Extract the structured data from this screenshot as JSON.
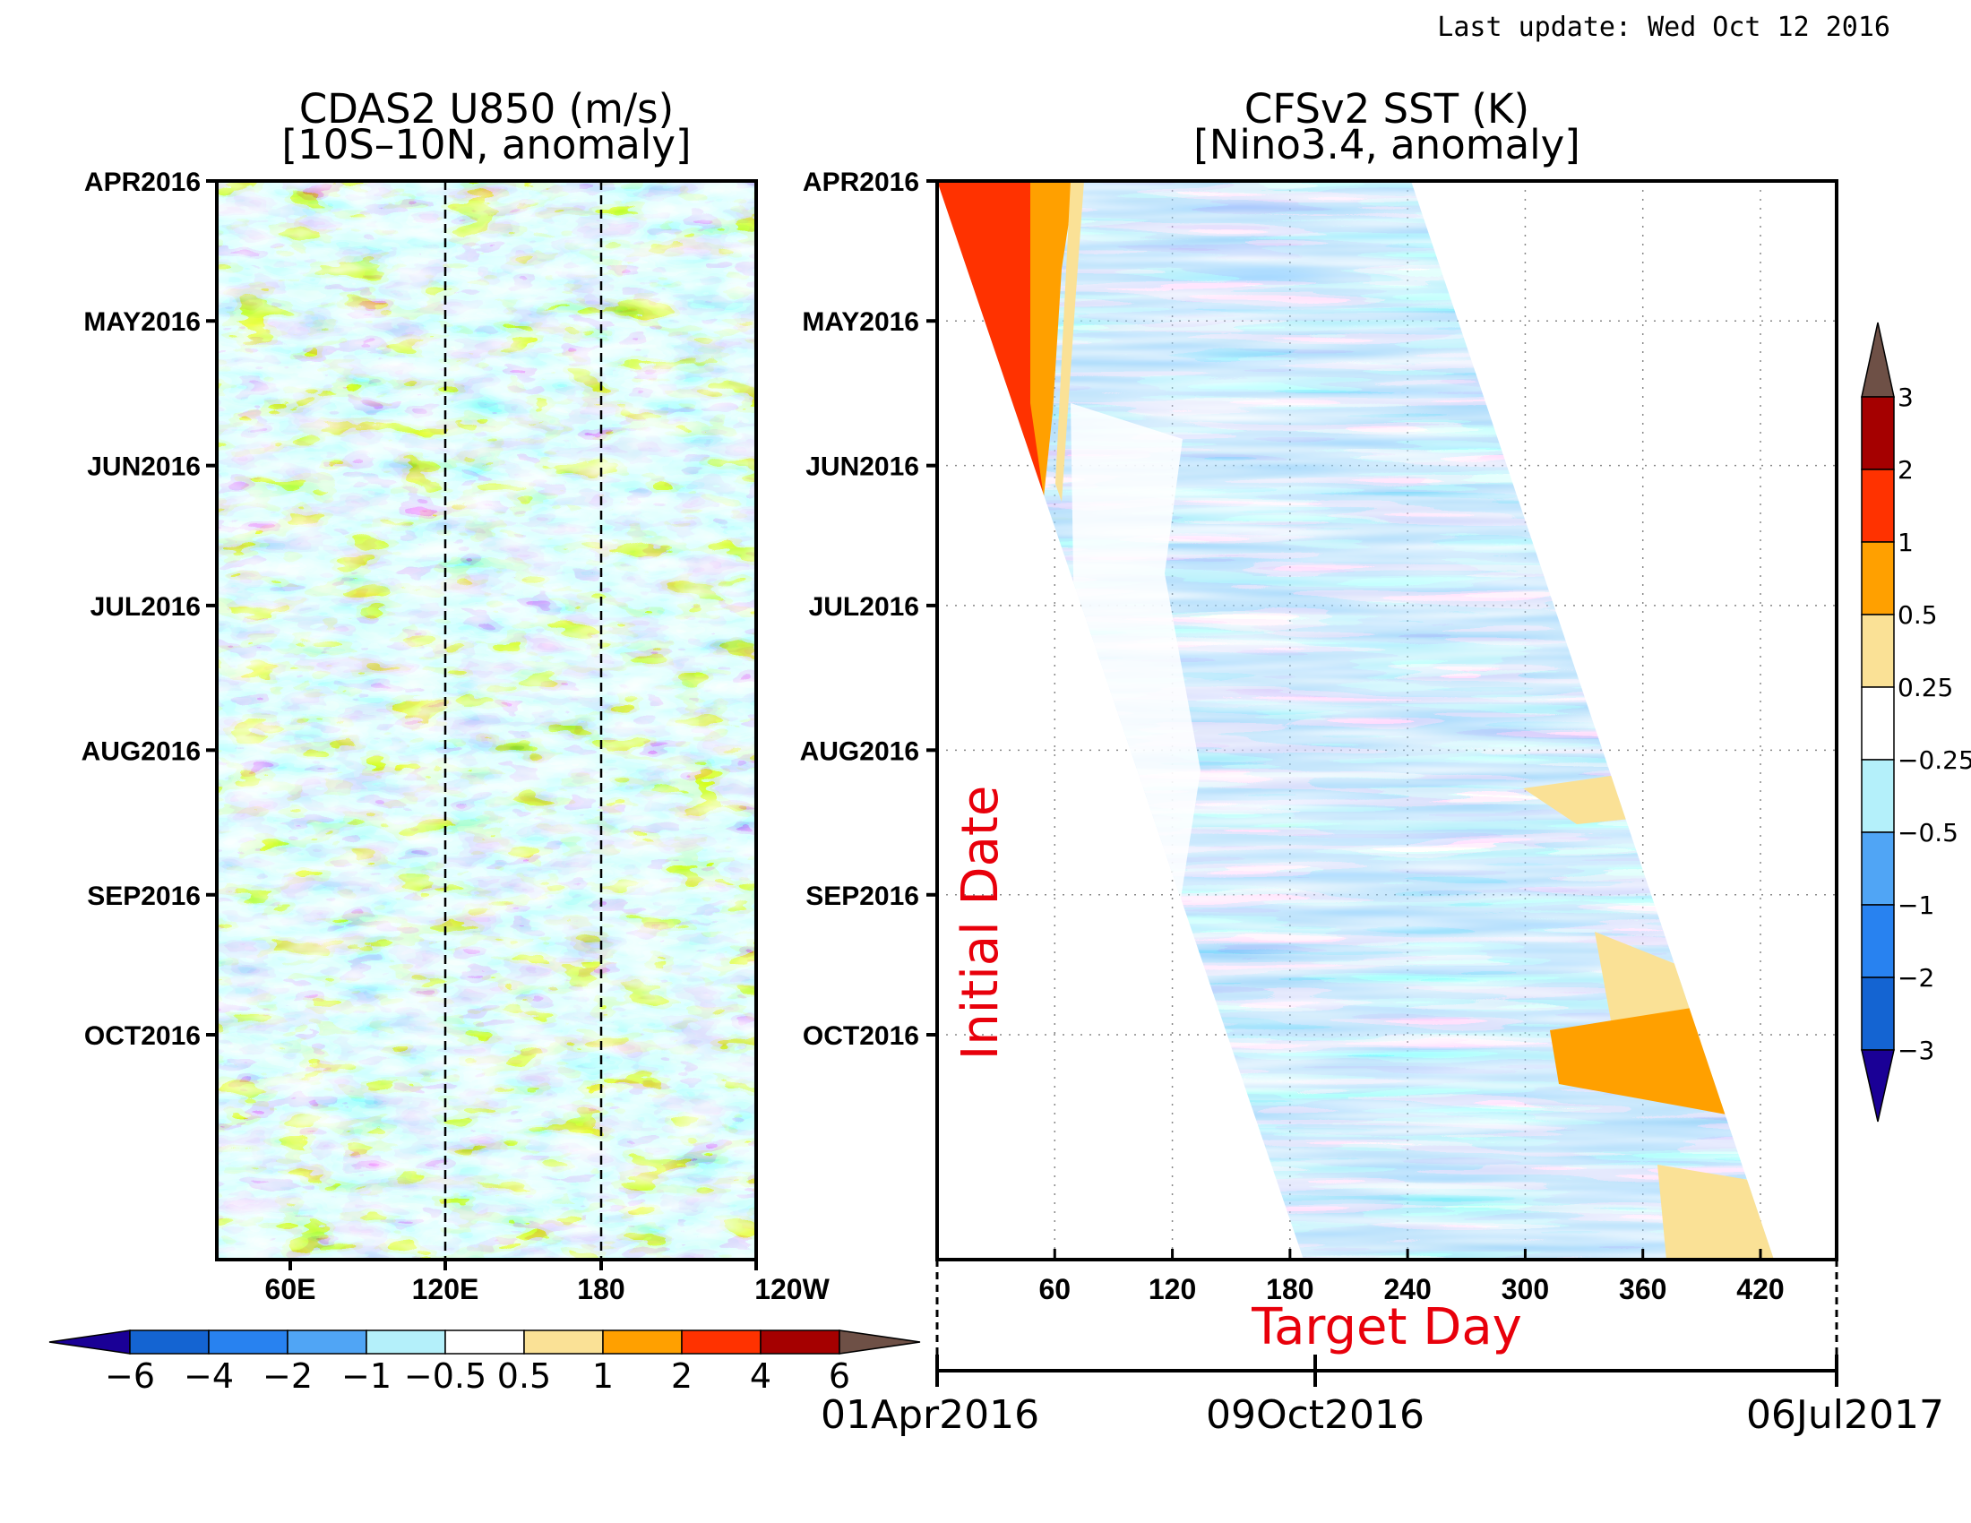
{
  "last_update": "Last update: Wed Oct 12 2016",
  "colors": {
    "diverging": [
      "#1a0096",
      "#1464d2",
      "#2882f0",
      "#50a5f5",
      "#96d2fa",
      "#b4f0fa",
      "#ffffff",
      "#fae196",
      "#ffa000",
      "#ff3200",
      "#a50000",
      "#6e5046"
    ]
  },
  "chart_data": [
    {
      "type": "heatmap",
      "title": "CDAS2 U850 (m/s)",
      "subtitle": "[10S–10N, anomaly]",
      "variable": "U850 zonal wind anomaly",
      "units": "m/s",
      "y_ticks": [
        "APR2016",
        "MAY2016",
        "JUN2016",
        "JUL2016",
        "AUG2016",
        "SEP2016",
        "OCT2016"
      ],
      "x_ticks": [
        "60E",
        "120E",
        "180",
        "120W"
      ],
      "reference_lines": [
        "120E",
        "180"
      ],
      "colorbar": {
        "orientation": "horizontal",
        "levels": [
          -6,
          -4,
          -2,
          -1,
          -0.5,
          0.5,
          1,
          2,
          4,
          6
        ],
        "tick_labels": [
          "−6",
          "−4",
          "−2",
          "−1",
          "−0.5",
          "0.5",
          "1",
          "2",
          "4",
          "6"
        ],
        "extend": "both"
      }
    },
    {
      "type": "heatmap",
      "title": "CFSv2 SST (K)",
      "subtitle": "[Nino3.4, anomaly]",
      "variable": "Nino3.4 SST anomaly forecast",
      "units": "K",
      "ylabel": "Initial Date",
      "xlabel": "Target Day",
      "y_ticks": [
        "APR2016",
        "MAY2016",
        "JUN2016",
        "JUL2016",
        "AUG2016",
        "SEP2016",
        "OCT2016"
      ],
      "x_ticks": [
        60,
        120,
        180,
        240,
        300,
        360,
        420
      ],
      "date_axis": [
        "01Apr2016",
        "09Oct2016",
        "06Jul2017"
      ],
      "grid": true,
      "colorbar": {
        "orientation": "vertical",
        "levels": [
          -3,
          -2,
          -1,
          -0.5,
          -0.25,
          0.25,
          0.5,
          1,
          2,
          3
        ],
        "tick_labels": [
          "−3",
          "−2",
          "−1",
          "−0.5",
          "−0.25",
          "0.25",
          "0.5",
          "1",
          "2",
          "3"
        ],
        "extend": "both"
      }
    }
  ]
}
